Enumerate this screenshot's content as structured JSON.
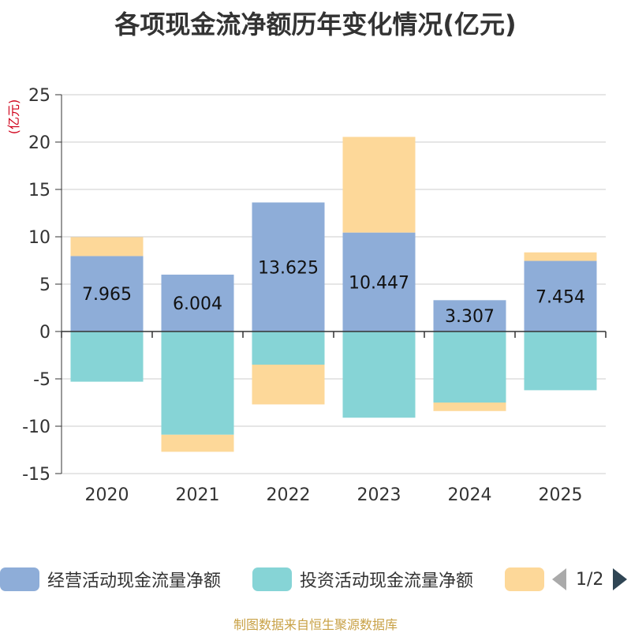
{
  "chart_data": {
    "type": "bar",
    "stacked": true,
    "title": "各项现金流净额历年变化情况(亿元)",
    "ylabel": "(亿元)",
    "xlabel": "",
    "categories": [
      "2020",
      "2021",
      "2022",
      "2023",
      "2024",
      "2025"
    ],
    "ylim": [
      -15,
      25
    ],
    "yticks": [
      25,
      20,
      15,
      10,
      5,
      0,
      -5,
      -10,
      -15
    ],
    "grid": true,
    "series": [
      {
        "name": "经营活动现金流量净额",
        "color": "#8eadd8",
        "values": [
          7.965,
          6.004,
          13.625,
          10.447,
          3.307,
          7.454
        ],
        "labels": [
          "7.965",
          "6.004",
          "13.625",
          "10.447",
          "3.307",
          "7.454"
        ]
      },
      {
        "name": "投资活动现金流量净额",
        "color": "#86d4d6",
        "values": [
          -5.3,
          -10.9,
          -3.5,
          -9.1,
          -7.5,
          -6.2
        ]
      },
      {
        "name": "",
        "color": "#fdd899",
        "values": [
          2.0,
          -1.8,
          -4.2,
          10.1,
          -0.9,
          0.9
        ]
      }
    ],
    "legend_position": "bottom"
  },
  "legend": {
    "page": "1/2"
  },
  "source": "制图数据来自恒生聚源数据库"
}
